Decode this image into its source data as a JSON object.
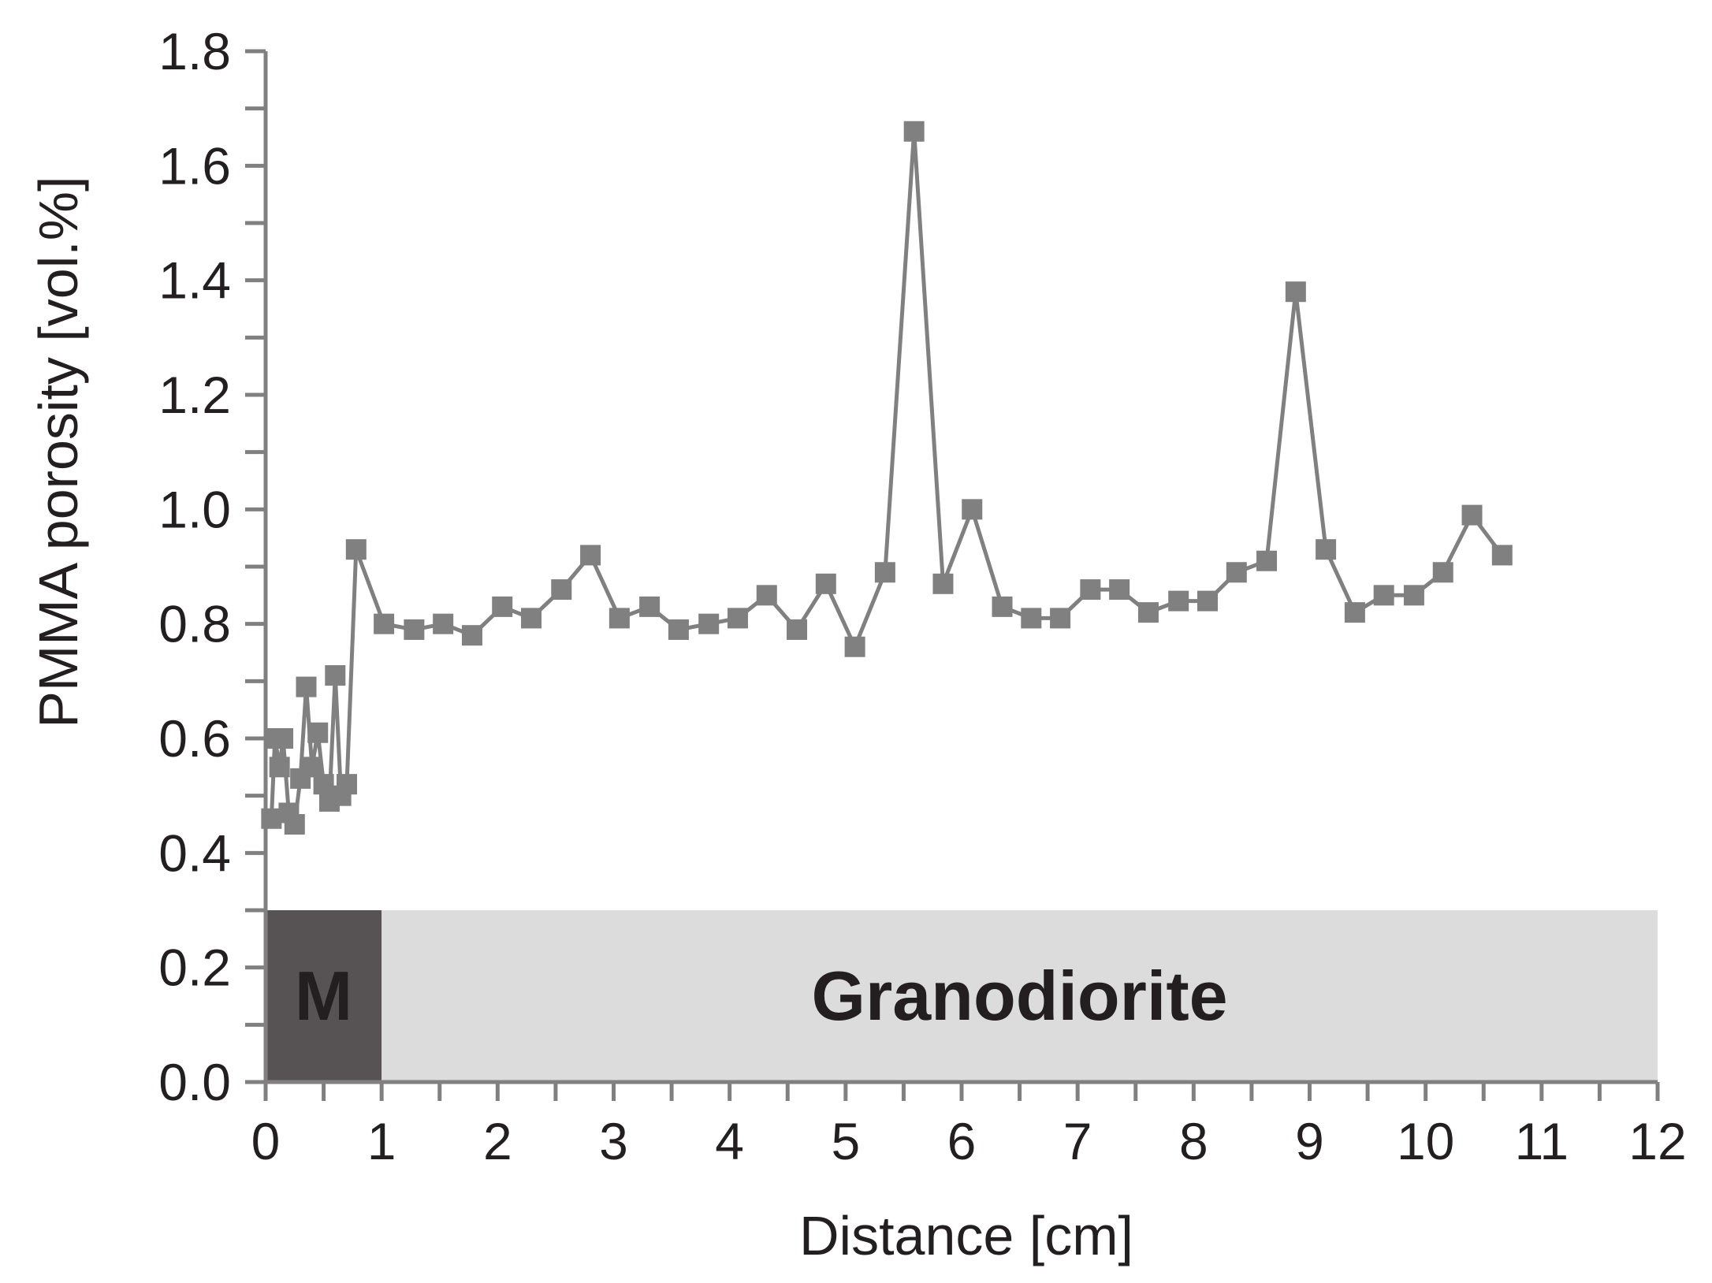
{
  "chart_data": {
    "type": "line",
    "xlabel": "Distance [cm]",
    "ylabel": "PMMA porosity [vol.%]",
    "xlim": [
      0,
      12
    ],
    "ylim": [
      0,
      1.8
    ],
    "x_ticks": [
      0,
      1,
      2,
      3,
      4,
      5,
      6,
      7,
      8,
      9,
      10,
      11,
      12
    ],
    "x_tick_labels": [
      "0",
      "1",
      "2",
      "3",
      "4",
      "5",
      "6",
      "7",
      "8",
      "9",
      "10",
      "11",
      "12"
    ],
    "y_ticks": [
      0,
      0.2,
      0.4,
      0.6,
      0.8,
      1.0,
      1.2,
      1.4,
      1.6,
      1.8
    ],
    "y_tick_labels": [
      "0.0",
      "0.2",
      "0.4",
      "0.6",
      "0.8",
      "1.0",
      "1.2",
      "1.4",
      "1.6",
      "1.8"
    ],
    "grid": false,
    "legend": "none",
    "marker": "square",
    "series_color": "#808080",
    "bands": [
      {
        "label": "M",
        "x_start": 0,
        "x_end": 1,
        "y_start": 0,
        "y_end": 0.3,
        "color": "#575354"
      },
      {
        "label": "Granodiorite",
        "x_start": 1,
        "x_end": 12,
        "y_start": 0,
        "y_end": 0.3,
        "color": "#dcdcdc"
      }
    ],
    "series": [
      {
        "x": [
          0.05,
          0.08,
          0.12,
          0.15,
          0.2,
          0.25,
          0.3,
          0.35,
          0.4,
          0.45,
          0.5,
          0.55,
          0.6,
          0.65,
          0.7,
          0.78,
          1.02,
          1.28,
          1.53,
          1.78,
          2.04,
          2.29,
          2.55,
          2.8,
          3.05,
          3.31,
          3.56,
          3.82,
          4.07,
          4.32,
          4.58,
          4.83,
          5.08,
          5.34,
          5.59,
          5.84,
          6.09,
          6.35,
          6.6,
          6.85,
          7.11,
          7.36,
          7.61,
          7.87,
          8.12,
          8.37,
          8.63,
          8.88,
          9.14,
          9.39,
          9.64,
          9.9,
          10.15,
          10.4,
          10.66
        ],
        "y": [
          0.46,
          0.6,
          0.55,
          0.6,
          0.47,
          0.45,
          0.53,
          0.69,
          0.55,
          0.61,
          0.52,
          0.49,
          0.71,
          0.5,
          0.52,
          0.93,
          0.8,
          0.79,
          0.8,
          0.78,
          0.83,
          0.81,
          0.86,
          0.92,
          0.81,
          0.83,
          0.79,
          0.8,
          0.81,
          0.85,
          0.79,
          0.87,
          0.76,
          0.89,
          1.66,
          0.87,
          1.0,
          0.83,
          0.81,
          0.81,
          0.86,
          0.86,
          0.82,
          0.84,
          0.84,
          0.89,
          0.91,
          1.38,
          0.93,
          0.82,
          0.85,
          0.85,
          0.89,
          0.99,
          0.92
        ]
      }
    ]
  }
}
